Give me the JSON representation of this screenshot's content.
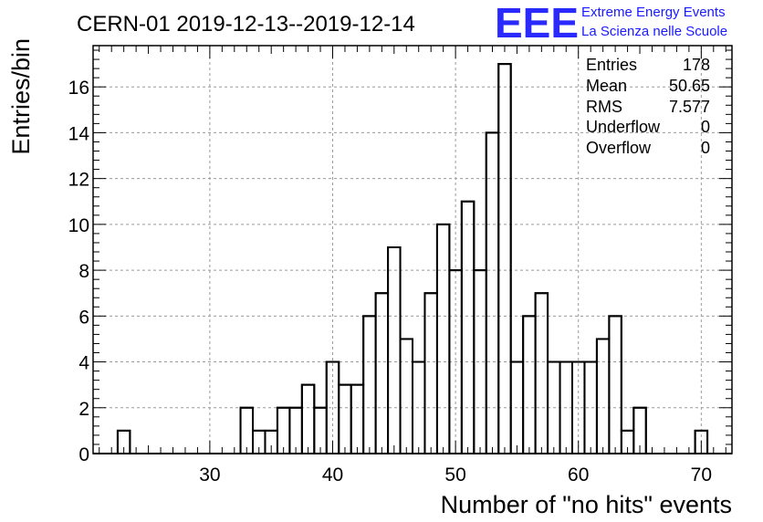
{
  "title": "CERN-01 2019-12-13--2019-12-14",
  "logo": {
    "mark": "EEE",
    "line1": "Extreme Energy Events",
    "line2": "La Scienza nelle Scuole",
    "color": "#1a1aff"
  },
  "stats": {
    "rows": [
      {
        "label": "Entries",
        "value": "178"
      },
      {
        "label": "Mean",
        "value": "50.65"
      },
      {
        "label": "RMS",
        "value": "7.577"
      },
      {
        "label": "Underflow",
        "value": "0"
      },
      {
        "label": "Overflow",
        "value": "0"
      }
    ]
  },
  "chart_data": {
    "type": "bar",
    "histogram": true,
    "xlabel": "Number of \"no hits\" events",
    "ylabel": "Entries/bin",
    "xlim": [
      20.5,
      72.5
    ],
    "ylim": [
      0,
      17.8
    ],
    "xticks": [
      30,
      40,
      50,
      60,
      70
    ],
    "yticks": [
      0,
      2,
      4,
      6,
      8,
      10,
      12,
      14,
      16
    ],
    "grid": true,
    "line_color": "#000000",
    "bin_width": 1,
    "bins": [
      23,
      33,
      34,
      35,
      36,
      37,
      38,
      39,
      40,
      41,
      42,
      43,
      44,
      45,
      46,
      47,
      48,
      49,
      50,
      51,
      52,
      53,
      54,
      55,
      56,
      57,
      58,
      59,
      60,
      61,
      62,
      63,
      64,
      65,
      70
    ],
    "values": [
      1,
      2,
      1,
      1,
      2,
      2,
      3,
      2,
      4,
      3,
      3,
      6,
      7,
      9,
      5,
      4,
      7,
      10,
      8,
      11,
      8,
      14,
      17,
      4,
      6,
      7,
      4,
      4,
      4,
      4,
      5,
      6,
      1,
      2,
      1
    ]
  }
}
